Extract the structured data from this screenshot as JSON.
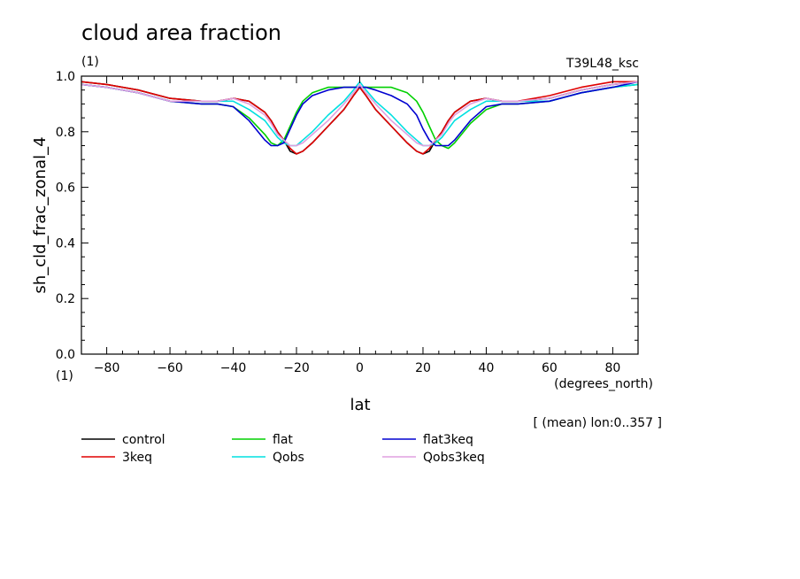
{
  "chart_data": {
    "type": "line",
    "title": "cloud area fraction",
    "units_top": "(1)",
    "units_bottom": "(1)",
    "experiment": "T39L48_ksc",
    "xlabel": "lat",
    "xunits": "(degrees_north)",
    "ylabel": "sh_cld_frac_zonal_4",
    "footnote": "[ (mean) lon:0..357 ]",
    "xlim": [
      -88,
      88
    ],
    "ylim": [
      0,
      1
    ],
    "xticks": [
      -80,
      -60,
      -40,
      -20,
      0,
      20,
      40,
      60,
      80
    ],
    "yticks": [
      0.0,
      0.2,
      0.4,
      0.6,
      0.8,
      1.0
    ],
    "ytick_labels": [
      "0.0",
      "0.2",
      "0.4",
      "0.6",
      "0.8",
      "1.0"
    ],
    "x": [
      -88,
      -80,
      -70,
      -60,
      -50,
      -45,
      -40,
      -35,
      -30,
      -28,
      -26,
      -24,
      -22,
      -20,
      -18,
      -15,
      -10,
      -5,
      -2,
      0,
      2,
      5,
      10,
      15,
      18,
      20,
      22,
      24,
      26,
      28,
      30,
      35,
      40,
      45,
      50,
      60,
      70,
      80,
      88
    ],
    "series": [
      {
        "name": "control",
        "color": "#000000",
        "values": [
          0.98,
          0.97,
          0.95,
          0.92,
          0.91,
          0.91,
          0.92,
          0.91,
          0.87,
          0.84,
          0.8,
          0.77,
          0.73,
          0.72,
          0.73,
          0.76,
          0.82,
          0.88,
          0.93,
          0.96,
          0.93,
          0.88,
          0.82,
          0.76,
          0.73,
          0.72,
          0.73,
          0.77,
          0.8,
          0.84,
          0.87,
          0.91,
          0.92,
          0.91,
          0.91,
          0.92,
          0.95,
          0.97,
          0.98
        ]
      },
      {
        "name": "3keq",
        "color": "#e00000",
        "values": [
          0.98,
          0.97,
          0.95,
          0.92,
          0.91,
          0.91,
          0.92,
          0.91,
          0.87,
          0.84,
          0.8,
          0.77,
          0.74,
          0.72,
          0.73,
          0.76,
          0.82,
          0.88,
          0.93,
          0.96,
          0.93,
          0.88,
          0.82,
          0.76,
          0.73,
          0.72,
          0.74,
          0.77,
          0.8,
          0.84,
          0.87,
          0.91,
          0.92,
          0.91,
          0.91,
          0.93,
          0.96,
          0.98,
          0.98
        ]
      },
      {
        "name": "flat",
        "color": "#00d000",
        "values": [
          0.97,
          0.96,
          0.94,
          0.91,
          0.9,
          0.9,
          0.89,
          0.85,
          0.79,
          0.76,
          0.75,
          0.77,
          0.82,
          0.87,
          0.91,
          0.94,
          0.96,
          0.96,
          0.96,
          0.96,
          0.96,
          0.96,
          0.96,
          0.94,
          0.91,
          0.87,
          0.82,
          0.77,
          0.75,
          0.74,
          0.76,
          0.83,
          0.88,
          0.9,
          0.9,
          0.91,
          0.94,
          0.96,
          0.97
        ]
      },
      {
        "name": "Qobs",
        "color": "#00e0e0",
        "values": [
          0.97,
          0.96,
          0.94,
          0.91,
          0.91,
          0.91,
          0.91,
          0.88,
          0.84,
          0.81,
          0.78,
          0.76,
          0.75,
          0.75,
          0.77,
          0.8,
          0.86,
          0.91,
          0.95,
          0.98,
          0.95,
          0.91,
          0.86,
          0.8,
          0.77,
          0.75,
          0.75,
          0.76,
          0.78,
          0.81,
          0.84,
          0.88,
          0.91,
          0.91,
          0.91,
          0.91,
          0.94,
          0.96,
          0.97
        ]
      },
      {
        "name": "flat3keq",
        "color": "#0000d0",
        "values": [
          0.97,
          0.96,
          0.94,
          0.91,
          0.9,
          0.9,
          0.89,
          0.84,
          0.77,
          0.75,
          0.75,
          0.76,
          0.81,
          0.86,
          0.9,
          0.93,
          0.95,
          0.96,
          0.96,
          0.96,
          0.96,
          0.95,
          0.93,
          0.9,
          0.86,
          0.81,
          0.77,
          0.75,
          0.75,
          0.75,
          0.77,
          0.84,
          0.89,
          0.9,
          0.9,
          0.91,
          0.94,
          0.96,
          0.98
        ]
      },
      {
        "name": "Qobs3keq",
        "color": "#e0a0e0",
        "values": [
          0.97,
          0.96,
          0.94,
          0.91,
          0.91,
          0.91,
          0.92,
          0.9,
          0.86,
          0.83,
          0.79,
          0.77,
          0.75,
          0.75,
          0.76,
          0.79,
          0.84,
          0.9,
          0.94,
          0.97,
          0.94,
          0.9,
          0.84,
          0.79,
          0.76,
          0.75,
          0.75,
          0.77,
          0.79,
          0.83,
          0.86,
          0.9,
          0.92,
          0.91,
          0.91,
          0.92,
          0.95,
          0.97,
          0.98
        ]
      }
    ]
  }
}
